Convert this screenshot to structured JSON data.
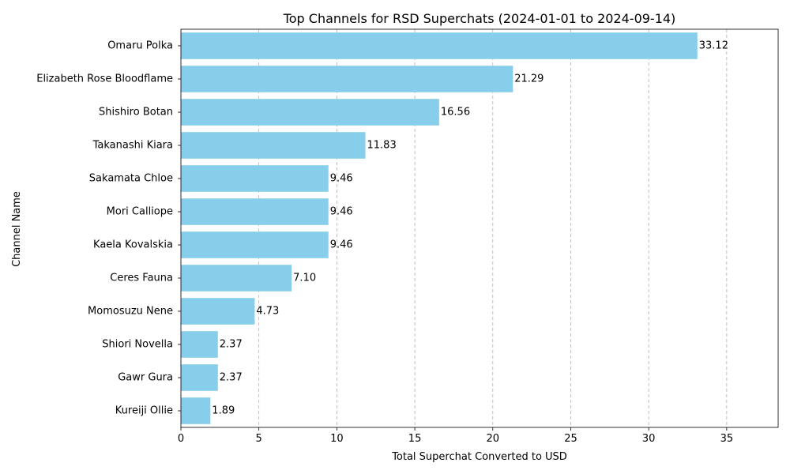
{
  "chart_data": {
    "type": "bar",
    "orientation": "horizontal",
    "title": "Top Channels for RSD Superchats (2024-01-01 to 2024-09-14)",
    "xlabel": "Total Superchat Converted to USD",
    "ylabel": "Channel Name",
    "categories": [
      "Omaru Polka",
      "Elizabeth Rose Bloodflame",
      "Shishiro Botan",
      "Takanashi Kiara",
      "Sakamata Chloe",
      "Mori Calliope",
      "Kaela Kovalskia",
      "Ceres Fauna",
      "Momosuzu Nene",
      "Shiori Novella",
      "Gawr Gura",
      "Kureiji Ollie"
    ],
    "values": [
      33.12,
      21.29,
      16.56,
      11.83,
      9.46,
      9.46,
      9.46,
      7.1,
      4.73,
      2.37,
      2.37,
      1.89
    ],
    "data_labels": [
      "33.12",
      "21.29",
      "16.56",
      "11.83",
      "9.46",
      "9.46",
      "9.46",
      "7.10",
      "4.73",
      "2.37",
      "2.37",
      "1.89"
    ],
    "xlim": [
      0,
      38.3
    ],
    "x_ticks": [
      0,
      5,
      10,
      15,
      20,
      25,
      30,
      35
    ],
    "x_tick_labels": [
      "0",
      "5",
      "10",
      "15",
      "20",
      "25",
      "30",
      "35"
    ],
    "grid": "x",
    "legend": "none",
    "bar_color": "#87ceeb",
    "grid_color": "#b0b0b0"
  }
}
